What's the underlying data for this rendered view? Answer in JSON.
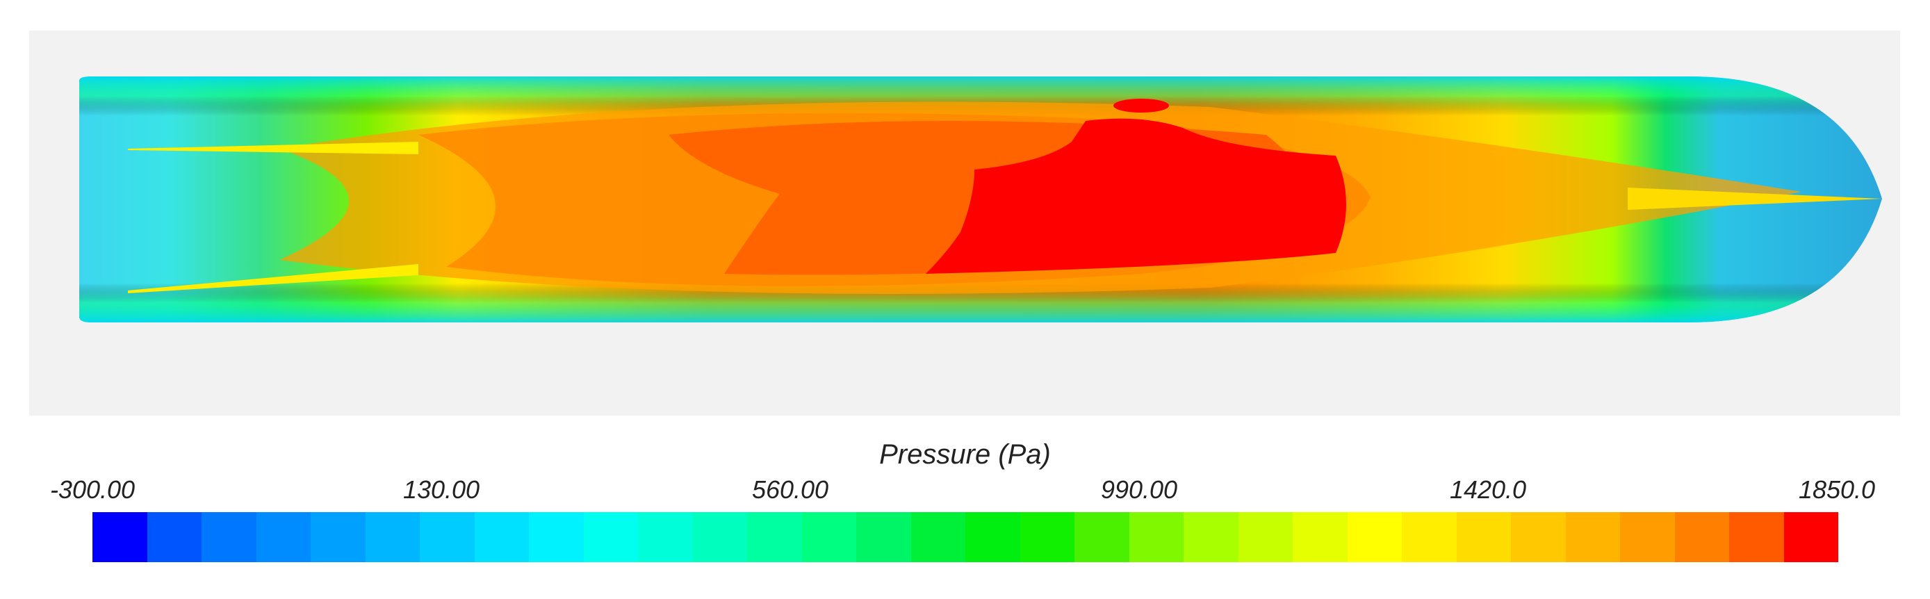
{
  "legend": {
    "title": "Pressure (Pa)",
    "min": -300.0,
    "max": 1850.0,
    "tick_labels": [
      "-300.00",
      "130.00",
      "560.00",
      "990.00",
      "1420.0",
      "1850.0"
    ],
    "colors": [
      "#0000ff",
      "#0055ff",
      "#0077ff",
      "#008cff",
      "#00a0ff",
      "#00b6ff",
      "#00ccff",
      "#00e0ff",
      "#00f2ff",
      "#00ffee",
      "#00ffd8",
      "#00ffbe",
      "#00ffa0",
      "#00ff80",
      "#00f566",
      "#00f03a",
      "#00ee10",
      "#10f000",
      "#4af000",
      "#80f800",
      "#a8ff00",
      "#c8ff00",
      "#e6ff00",
      "#ffff00",
      "#ffee00",
      "#ffdc00",
      "#ffc800",
      "#ffb400",
      "#ff9c00",
      "#ff8000",
      "#ff5a00",
      "#ff0000"
    ]
  }
}
